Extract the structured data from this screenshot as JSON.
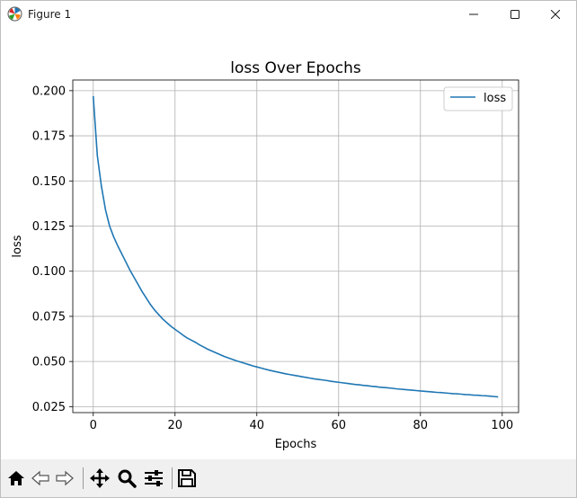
{
  "window": {
    "title": "Figure 1",
    "icon": "matplotlib-icon",
    "controls": [
      "minimize-icon",
      "maximize-icon",
      "close-icon"
    ]
  },
  "toolbar": {
    "tools": [
      {
        "name": "home-button",
        "icon": "home-icon"
      },
      {
        "name": "back-button",
        "icon": "back-arrow-icon"
      },
      {
        "name": "forward-button",
        "icon": "forward-arrow-icon"
      },
      {
        "name": "pan-button",
        "icon": "move-icon"
      },
      {
        "name": "zoom-button",
        "icon": "magnifier-icon"
      },
      {
        "name": "configure-subplots-button",
        "icon": "sliders-icon"
      },
      {
        "name": "save-button",
        "icon": "floppy-disk-icon"
      }
    ]
  },
  "chart_data": {
    "type": "line",
    "title": "loss Over Epochs",
    "xlabel": "Epochs",
    "ylabel": "loss",
    "xlim": [
      -5,
      104
    ],
    "ylim": [
      0.0217,
      0.2059
    ],
    "xticks": [
      0,
      20,
      40,
      60,
      80,
      100
    ],
    "xtick_labels": [
      "0",
      "20",
      "40",
      "60",
      "80",
      "100"
    ],
    "yticks": [
      0.025,
      0.05,
      0.075,
      0.1,
      0.125,
      0.15,
      0.175,
      0.2
    ],
    "ytick_labels": [
      "0.025",
      "0.050",
      "0.075",
      "0.100",
      "0.125",
      "0.150",
      "0.175",
      "0.200"
    ],
    "grid": true,
    "legend": "top-right",
    "color": "#1f77b4",
    "series": [
      {
        "name": "loss",
        "x": [
          0,
          1,
          2,
          3,
          4,
          5,
          6,
          7,
          8,
          9,
          10,
          11,
          12,
          13,
          14,
          15,
          16,
          17,
          18,
          19,
          20,
          21,
          22,
          23,
          24,
          25,
          26,
          27,
          28,
          29,
          30,
          31,
          32,
          33,
          34,
          35,
          36,
          37,
          38,
          39,
          40,
          41,
          42,
          43,
          44,
          45,
          46,
          47,
          48,
          49,
          50,
          51,
          52,
          53,
          54,
          55,
          56,
          57,
          58,
          59,
          60,
          61,
          62,
          63,
          64,
          65,
          66,
          67,
          68,
          69,
          70,
          71,
          72,
          73,
          74,
          75,
          76,
          77,
          78,
          79,
          80,
          81,
          82,
          83,
          84,
          85,
          86,
          87,
          88,
          89,
          90,
          91,
          92,
          93,
          94,
          95,
          96,
          97,
          98,
          99
        ],
        "values": [
          0.197,
          0.164,
          0.147,
          0.134,
          0.125,
          0.119,
          0.114,
          0.1095,
          0.105,
          0.1005,
          0.0965,
          0.0925,
          0.0885,
          0.085,
          0.0815,
          0.0785,
          0.076,
          0.0735,
          0.0715,
          0.0695,
          0.0678,
          0.0662,
          0.0645,
          0.063,
          0.0618,
          0.0606,
          0.0592,
          0.058,
          0.0568,
          0.0558,
          0.0548,
          0.0538,
          0.0528,
          0.052,
          0.0512,
          0.0504,
          0.0497,
          0.049,
          0.0483,
          0.0476,
          0.047,
          0.0464,
          0.0458,
          0.0452,
          0.0447,
          0.0442,
          0.0437,
          0.0432,
          0.0428,
          0.0424,
          0.042,
          0.0416,
          0.0412,
          0.0408,
          0.0404,
          0.0401,
          0.0398,
          0.0395,
          0.0391,
          0.0388,
          0.0385,
          0.0382,
          0.0379,
          0.0376,
          0.0373,
          0.0371,
          0.0368,
          0.0366,
          0.0363,
          0.0361,
          0.0358,
          0.0356,
          0.0354,
          0.0352,
          0.0349,
          0.0347,
          0.0345,
          0.0343,
          0.0341,
          0.0339,
          0.0337,
          0.0335,
          0.0333,
          0.0331,
          0.0329,
          0.0328,
          0.0326,
          0.0324,
          0.0322,
          0.0321,
          0.0319,
          0.0317,
          0.0316,
          0.0314,
          0.0313,
          0.0311,
          0.031,
          0.0308,
          0.0306,
          0.0304
        ]
      }
    ]
  }
}
